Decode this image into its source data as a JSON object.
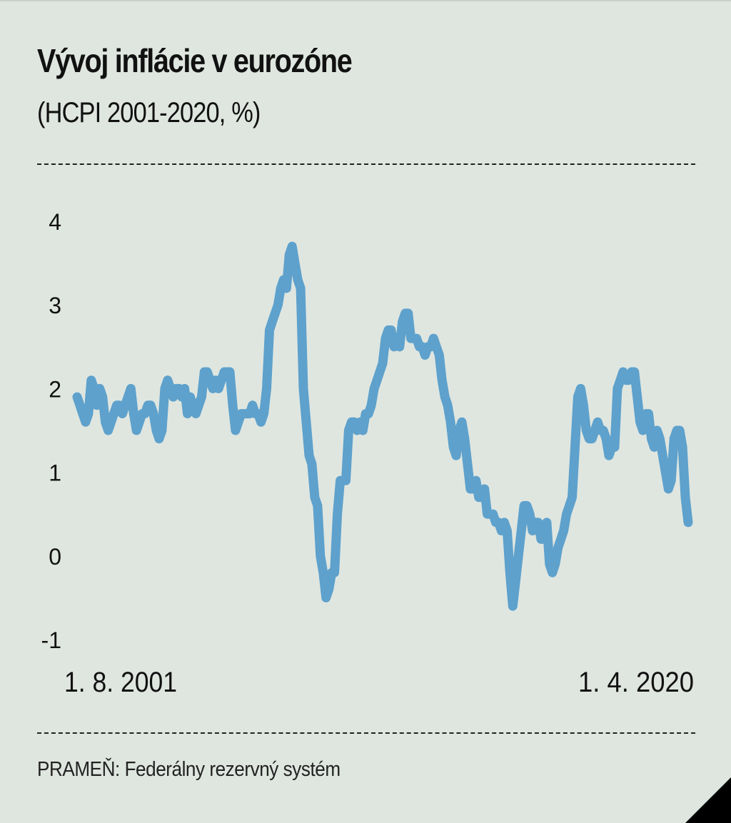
{
  "title": "Vývoj inflácie v eurozóne",
  "subtitle": "(HCPI 2001-2020, %)",
  "source": "PRAMEŇ: Federálny rezervný systém",
  "colors": {
    "background": "#dfe6e0",
    "line": "#5ea1cc",
    "text": "#111111"
  },
  "chart_data": {
    "type": "line",
    "title": "Vývoj inflácie v eurozóne",
    "subtitle": "(HCPI 2001-2020, %)",
    "xlabel": "",
    "ylabel": "",
    "x_start": "1. 8. 2001",
    "x_end": "1. 4. 2020",
    "x_labels": [
      "1. 8. 2001",
      "1. 4. 2020"
    ],
    "ylim": [
      -1,
      4
    ],
    "yticks": [
      "4",
      "3",
      "2",
      "1",
      "0",
      "-1"
    ],
    "grid": false,
    "legend": "none",
    "series": [
      {
        "values": [
          1.9,
          1.8,
          1.7,
          1.6,
          1.7,
          2.1,
          2.0,
          1.8,
          2.0,
          1.9,
          1.6,
          1.5,
          1.6,
          1.7,
          1.8,
          1.8,
          1.7,
          1.8,
          1.9,
          2.0,
          1.7,
          1.5,
          1.6,
          1.7,
          1.7,
          1.8,
          1.8,
          1.7,
          1.5,
          1.4,
          1.5,
          2.0,
          2.1,
          2.0,
          1.9,
          2.0,
          2.0,
          1.9,
          2.0,
          1.7,
          1.9,
          1.8,
          1.7,
          1.8,
          1.9,
          2.2,
          2.2,
          2.1,
          2.0,
          2.1,
          2.0,
          2.1,
          2.2,
          2.2,
          2.2,
          1.8,
          1.5,
          1.6,
          1.7,
          1.7,
          1.7,
          1.7,
          1.8,
          1.7,
          1.7,
          1.6,
          1.7,
          2.0,
          2.7,
          2.8,
          2.9,
          3.0,
          3.2,
          3.3,
          3.2,
          3.6,
          3.7,
          3.5,
          3.3,
          3.2,
          2.0,
          1.6,
          1.2,
          1.1,
          0.7,
          0.6,
          0.0,
          -0.2,
          -0.5,
          -0.4,
          -0.2,
          -0.2,
          0.5,
          0.9,
          0.9,
          0.9,
          1.5,
          1.6,
          1.6,
          1.5,
          1.6,
          1.5,
          1.7,
          1.7,
          1.8,
          2.0,
          2.1,
          2.2,
          2.3,
          2.6,
          2.7,
          2.7,
          2.5,
          2.6,
          2.5,
          2.8,
          2.9,
          2.9,
          2.6,
          2.6,
          2.6,
          2.5,
          2.5,
          2.4,
          2.5,
          2.5,
          2.6,
          2.5,
          2.4,
          2.1,
          1.9,
          1.8,
          1.6,
          1.3,
          1.2,
          1.5,
          1.6,
          1.4,
          1.1,
          0.8,
          0.8,
          0.9,
          0.7,
          0.7,
          0.8,
          0.5,
          0.5,
          0.5,
          0.4,
          0.4,
          0.3,
          0.4,
          0.3,
          -0.2,
          -0.6,
          -0.3,
          0.0,
          0.3,
          0.6,
          0.6,
          0.5,
          0.3,
          0.4,
          0.4,
          0.2,
          0.2,
          0.4,
          -0.1,
          -0.2,
          -0.1,
          0.1,
          0.2,
          0.3,
          0.5,
          0.6,
          0.7,
          1.3,
          1.9,
          2.0,
          1.8,
          1.5,
          1.4,
          1.4,
          1.5,
          1.6,
          1.5,
          1.5,
          1.4,
          1.2,
          1.3,
          1.3,
          2.0,
          2.1,
          2.2,
          2.1,
          2.1,
          2.2,
          2.2,
          1.9,
          1.6,
          1.5,
          1.7,
          1.7,
          1.4,
          1.3,
          1.5,
          1.4,
          1.2,
          1.0,
          0.8,
          0.9,
          1.4,
          1.5,
          1.5,
          1.3,
          0.7,
          0.4
        ]
      }
    ]
  }
}
